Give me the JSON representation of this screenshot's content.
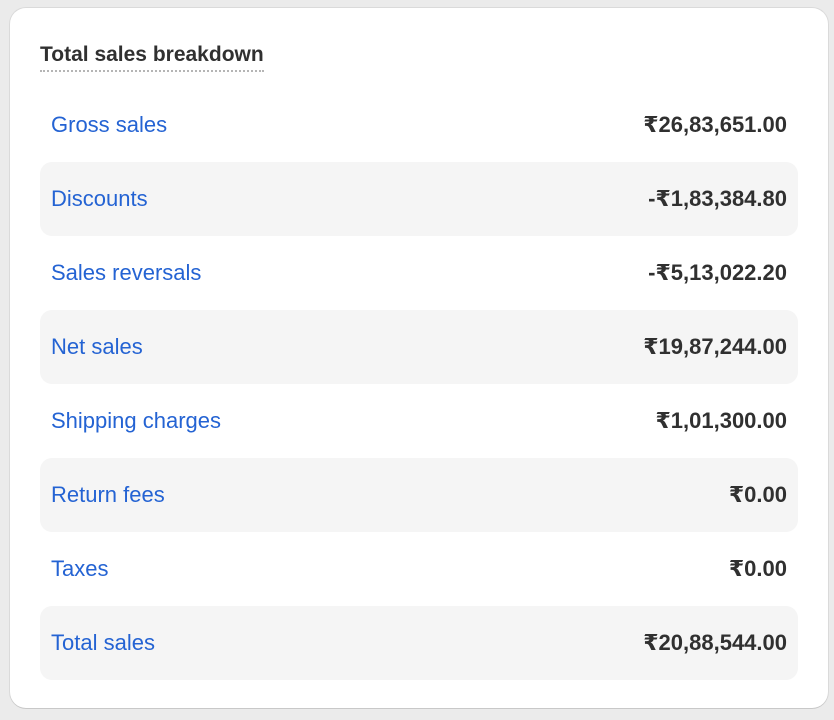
{
  "card": {
    "title": "Total sales breakdown"
  },
  "rows": [
    {
      "label": "Gross sales",
      "value": "₹26,83,651.00"
    },
    {
      "label": "Discounts",
      "value": "-₹1,83,384.80"
    },
    {
      "label": "Sales reversals",
      "value": "-₹5,13,022.20"
    },
    {
      "label": "Net sales",
      "value": "₹19,87,244.00"
    },
    {
      "label": "Shipping charges",
      "value": "₹1,01,300.00"
    },
    {
      "label": "Return fees",
      "value": "₹0.00"
    },
    {
      "label": "Taxes",
      "value": "₹0.00"
    },
    {
      "label": "Total sales",
      "value": "₹20,88,544.00"
    }
  ],
  "colors": {
    "link": "#2463d3",
    "text": "#303030",
    "row_shade": "#f5f5f5",
    "page_background": "#ebebeb"
  }
}
